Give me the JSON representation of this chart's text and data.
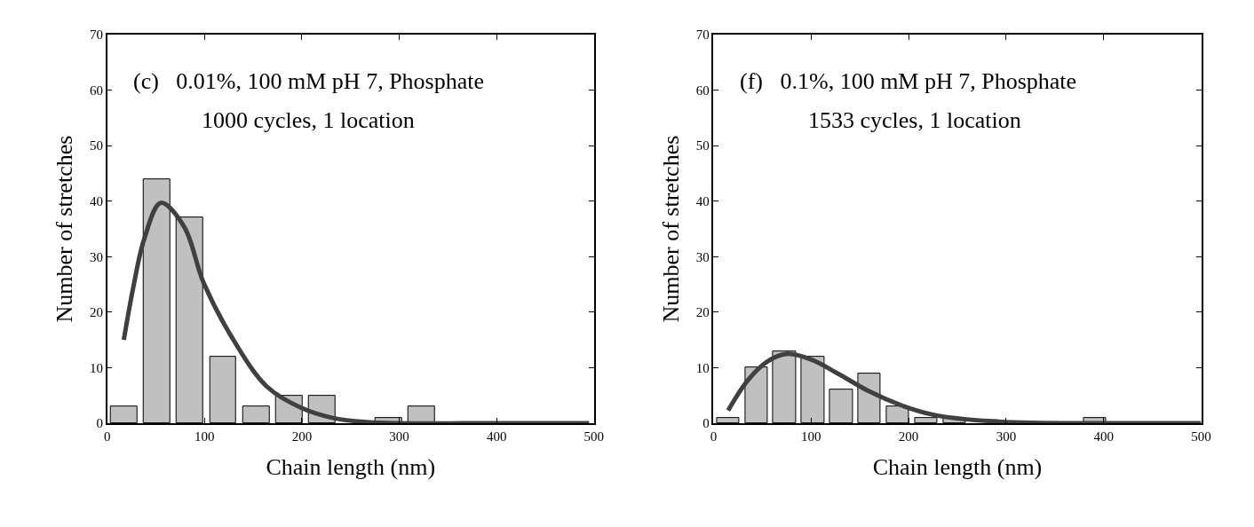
{
  "chart_data": [
    {
      "type": "bar",
      "xlabel": "Chain length (nm)",
      "ylabel": "Number of stretches",
      "xlim": [
        0,
        500
      ],
      "ylim": [
        0,
        70
      ],
      "xticks": [
        0,
        100,
        200,
        300,
        400,
        500
      ],
      "yticks": [
        0,
        10,
        20,
        30,
        40,
        50,
        60,
        70
      ],
      "annotations": [
        "(c)   0.01%, 100 mM pH 7, Phosphate",
        "1000 cycles, 1 location"
      ],
      "series": [
        {
          "color": "#c0c0c0",
          "x": [
            17,
            51,
            85,
            119,
            153,
            187,
            221,
            289,
            323
          ],
          "values": [
            3,
            44,
            37,
            12,
            3,
            5,
            5,
            1,
            3
          ]
        },
        {
          "type": "line",
          "color": "#404040",
          "x": [
            17,
            27,
            38,
            55,
            79,
            99,
            130,
            164,
            199,
            233,
            267,
            300,
            400,
            495
          ],
          "values": [
            15,
            24.7,
            33.2,
            39.7,
            35.4,
            25.3,
            14.9,
            6.6,
            2.8,
            0.9,
            0.2,
            0,
            0,
            0
          ]
        }
      ]
    },
    {
      "type": "bar",
      "xlabel": "Chain length (nm)",
      "ylabel": "Number of stretches",
      "xlim": [
        0,
        500
      ],
      "ylim": [
        0,
        70
      ],
      "xticks": [
        0,
        100,
        200,
        300,
        400,
        500
      ],
      "yticks": [
        0,
        10,
        20,
        30,
        40,
        50,
        60,
        70
      ],
      "annotations": [
        "(f)   0.1%, 100 mM pH 7, Phosphate",
        "1533 cycles, 1 location"
      ],
      "series": [
        {
          "color": "#c0c0c0",
          "x": [
            15,
            44,
            73,
            102,
            131,
            160,
            189,
            218,
            247,
            391
          ],
          "values": [
            1,
            10,
            13,
            12,
            6,
            9,
            3,
            1,
            1,
            1
          ]
        },
        {
          "type": "line",
          "color": "#404040",
          "x": [
            15,
            35,
            55,
            76,
            101,
            127,
            160,
            193,
            226,
            259,
            292,
            325,
            400,
            500
          ],
          "values": [
            2.3,
            7.7,
            11.1,
            12.5,
            11.4,
            9.0,
            5.7,
            3.2,
            1.5,
            0.7,
            0.3,
            0.1,
            0,
            0
          ]
        }
      ]
    }
  ]
}
